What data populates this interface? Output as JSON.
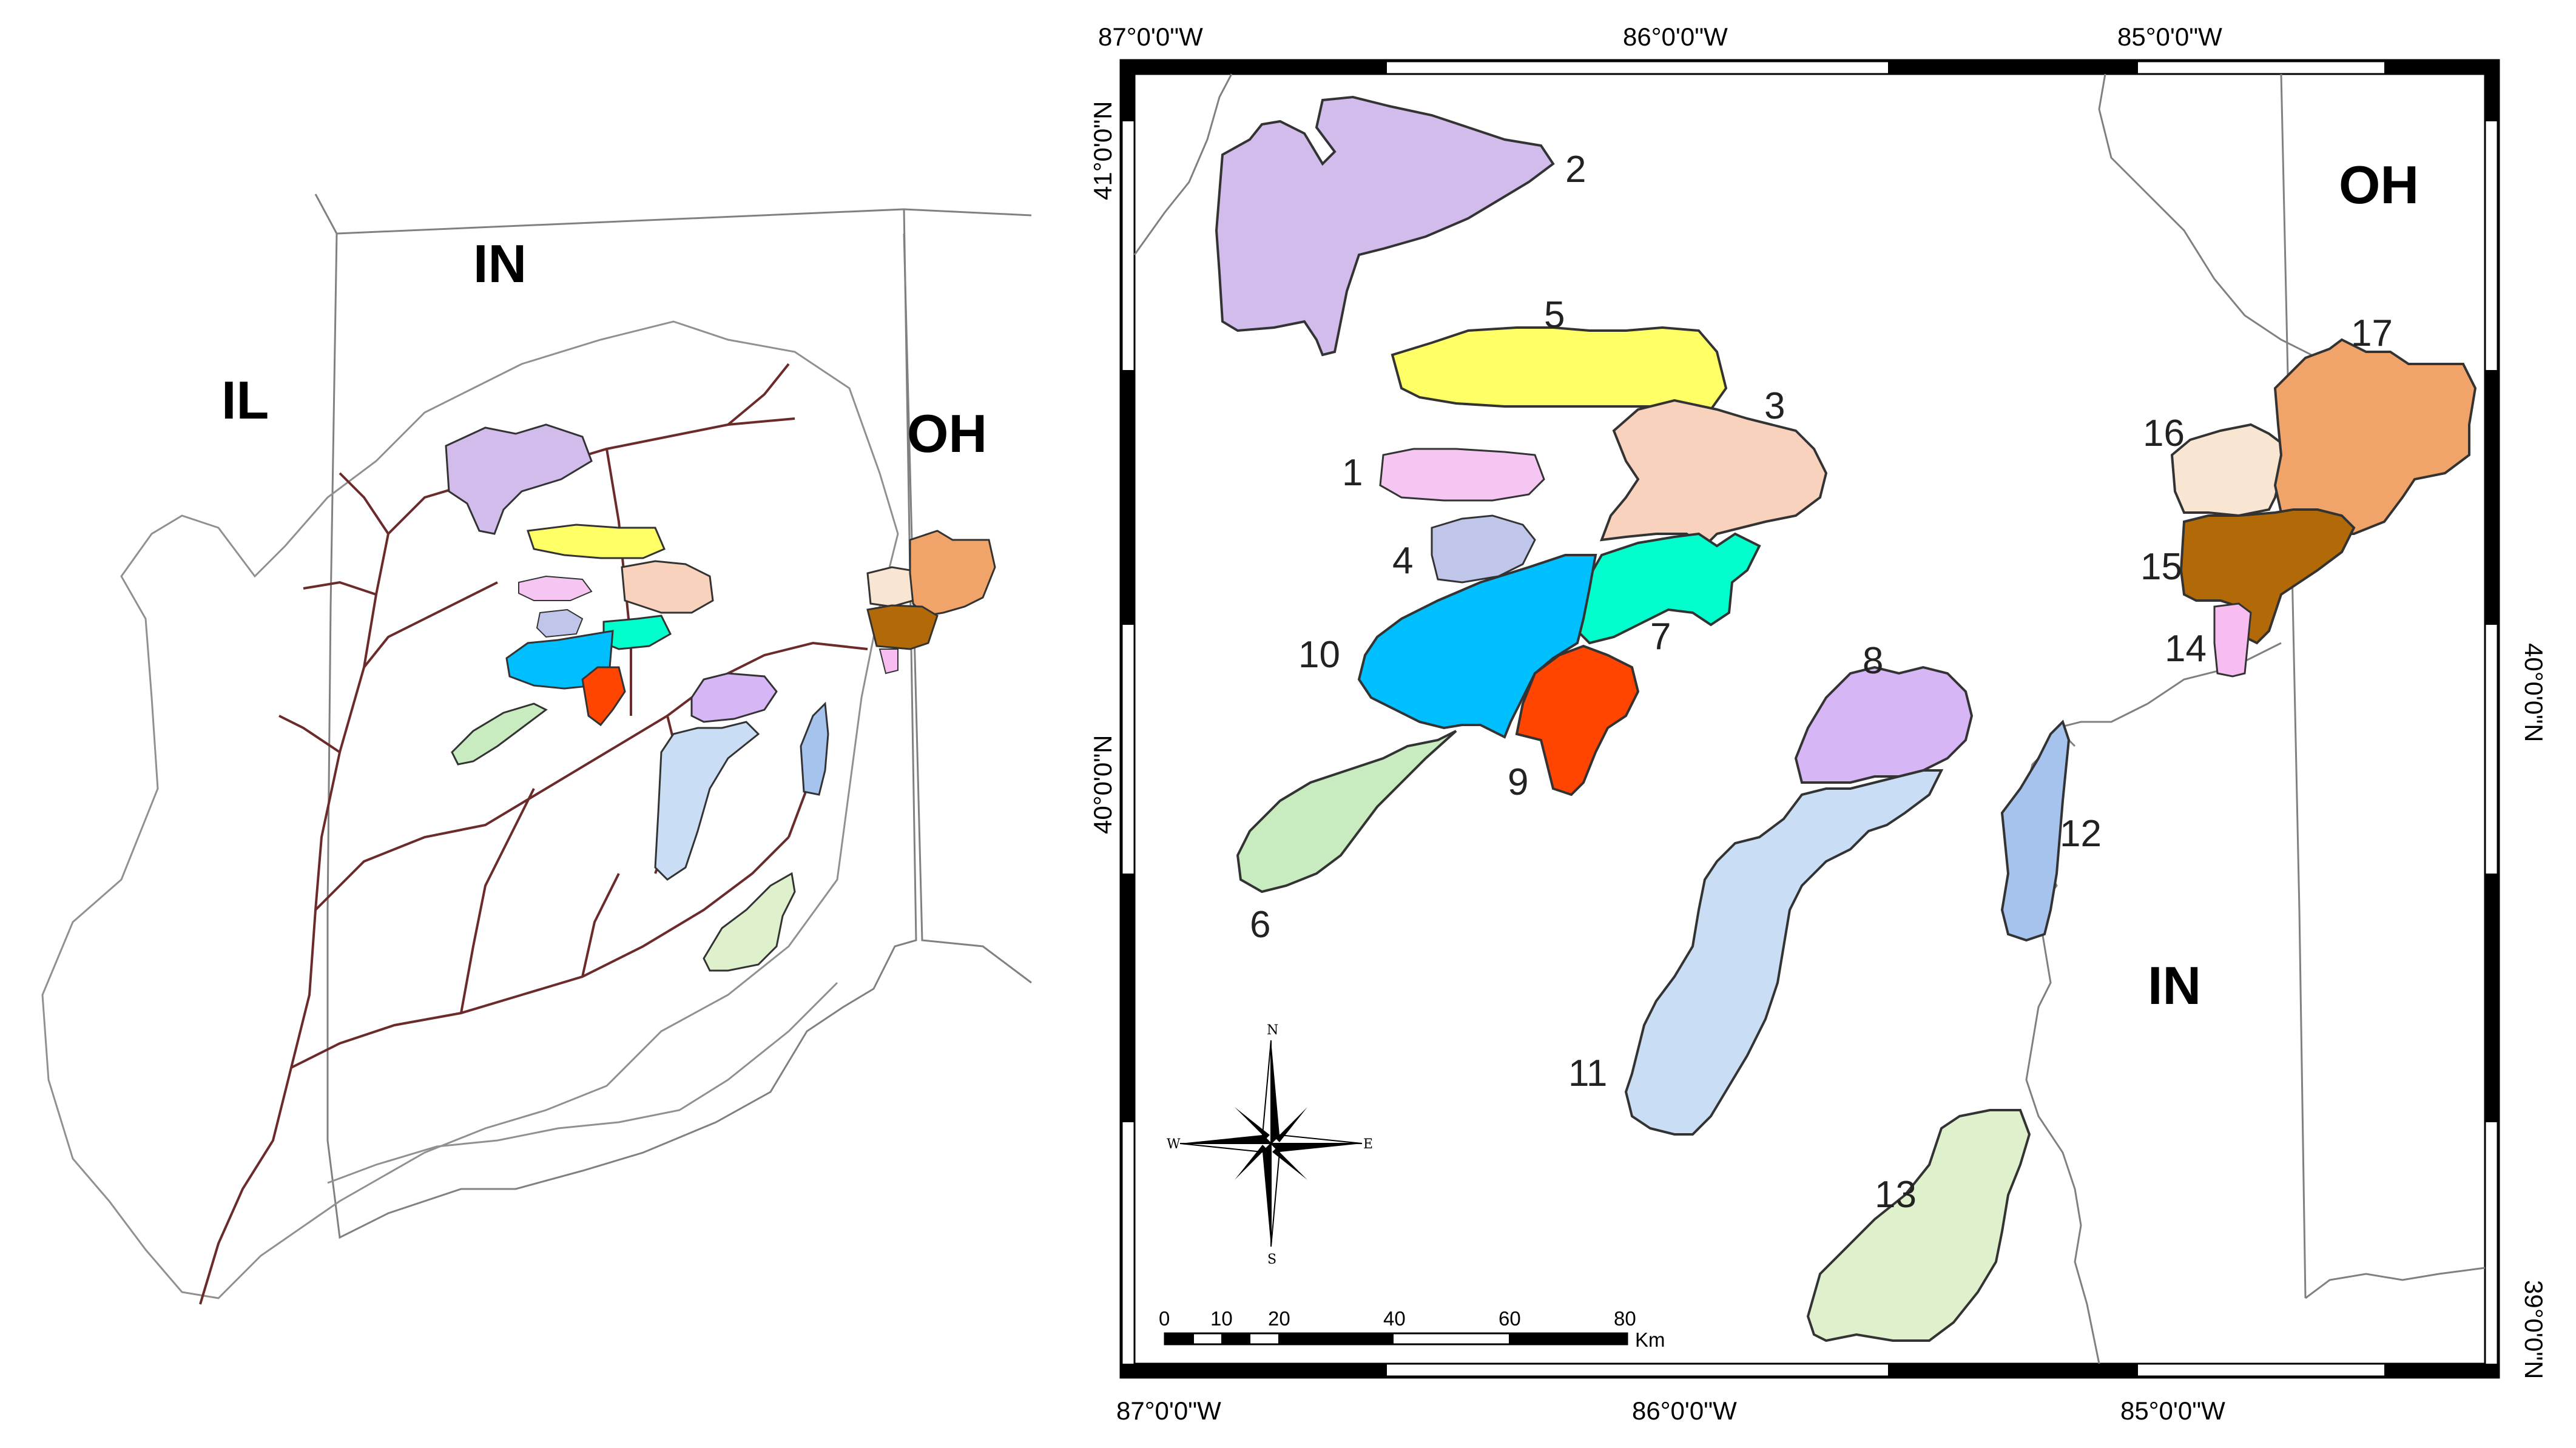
{
  "left_map": {
    "state_labels": {
      "il": "IL",
      "in": "IN",
      "oh": "OH"
    }
  },
  "right_map": {
    "state_labels": {
      "oh": "OH",
      "in": "IN"
    },
    "top_longitudes": [
      "87°0'0\"W",
      "86°0'0\"W",
      "85°0'0\"W"
    ],
    "bottom_longitudes": [
      "87°0'0\"W",
      "86°0'0\"W",
      "85°0'0\"W"
    ],
    "left_latitudes": [
      "41°0'0\"N",
      "40°0'0\"N"
    ],
    "right_latitudes": [
      "40°0'0\"N",
      "39°0'0\"N"
    ],
    "scale_bar": {
      "ticks": [
        "0",
        "10",
        "20",
        "40",
        "60",
        "80"
      ],
      "unit": "Km"
    },
    "compass": {
      "n": "N",
      "s": "S",
      "e": "E",
      "w": "W"
    },
    "watersheds": [
      {
        "id": "1",
        "color": "#f5c6f2"
      },
      {
        "id": "2",
        "color": "#d2bcec"
      },
      {
        "id": "3",
        "color": "#f8d2bd"
      },
      {
        "id": "4",
        "color": "#c0c6ea"
      },
      {
        "id": "5",
        "color": "#ffff66"
      },
      {
        "id": "6",
        "color": "#c8ecc0"
      },
      {
        "id": "7",
        "color": "#00ffcc"
      },
      {
        "id": "8",
        "color": "#d7b6f5"
      },
      {
        "id": "9",
        "color": "#ff4500"
      },
      {
        "id": "10",
        "color": "#00bfff"
      },
      {
        "id": "11",
        "color": "#c9ddf5"
      },
      {
        "id": "12",
        "color": "#a6c3ee"
      },
      {
        "id": "13",
        "color": "#dff0cc"
      },
      {
        "id": "14",
        "color": "#f7bdf0"
      },
      {
        "id": "15",
        "color": "#b26a08"
      },
      {
        "id": "16",
        "color": "#f8e6d2"
      },
      {
        "id": "17",
        "color": "#f0a46a"
      }
    ]
  }
}
